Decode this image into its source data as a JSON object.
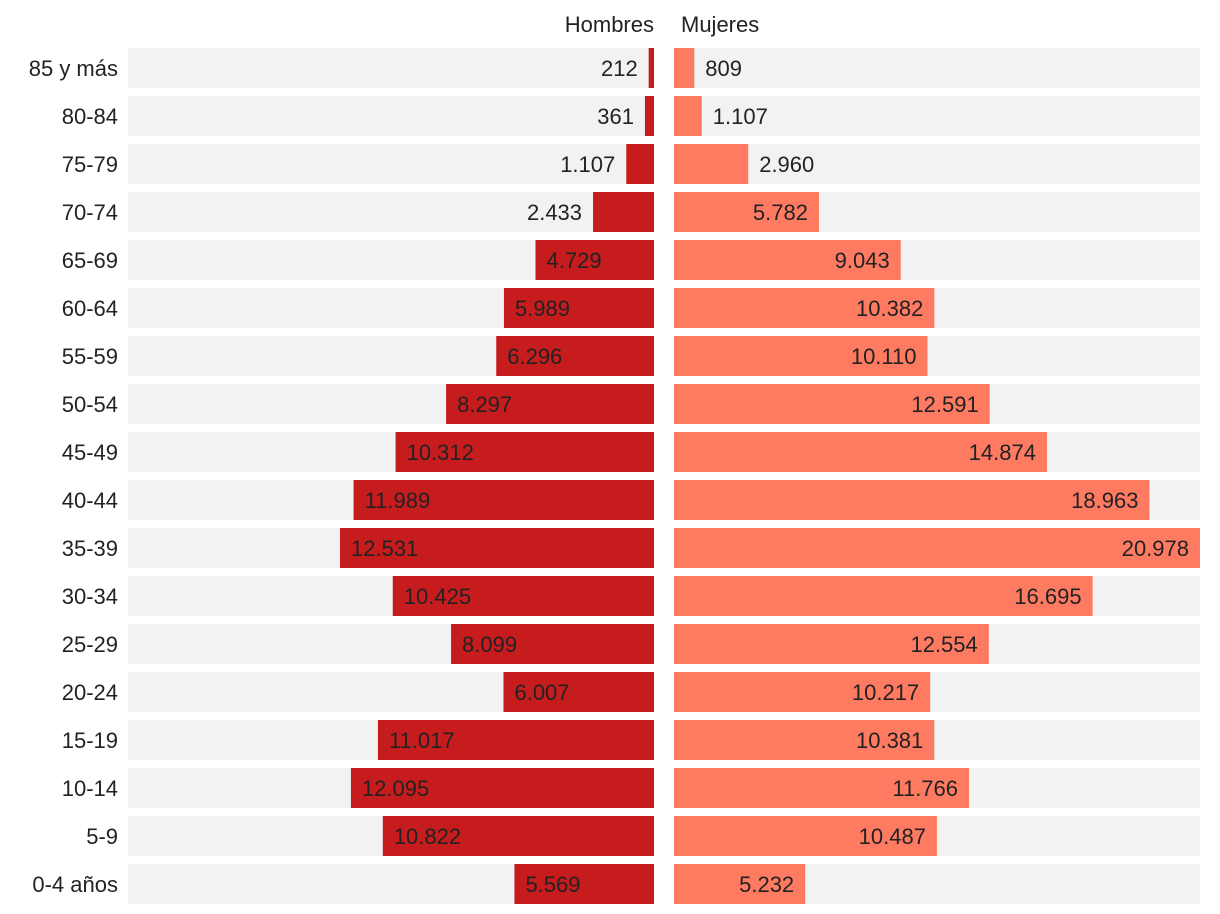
{
  "chart_data": {
    "type": "bar",
    "subtype": "population-pyramid",
    "categories": [
      "85 y más",
      "80-84",
      "75-79",
      "70-74",
      "65-69",
      "60-64",
      "55-59",
      "50-54",
      "45-49",
      "40-44",
      "35-39",
      "30-34",
      "25-29",
      "20-24",
      "15-19",
      "10-14",
      "5-9",
      "0-4 años"
    ],
    "series": [
      {
        "name": "Hombres",
        "color": "#c61c1e",
        "values": [
          212,
          361,
          1107,
          2433,
          4729,
          5989,
          6296,
          8297,
          10312,
          11989,
          12531,
          10425,
          8099,
          6007,
          11017,
          12095,
          10822,
          5569
        ],
        "labels": [
          "212",
          "361",
          "1.107",
          "2.433",
          "4.729",
          "5.989",
          "6.296",
          "8.297",
          "10.312",
          "11.989",
          "12.531",
          "10.425",
          "8.099",
          "6.007",
          "11.017",
          "12.095",
          "10.822",
          "5.569"
        ]
      },
      {
        "name": "Mujeres",
        "color": "#fe7b62",
        "values": [
          809,
          1107,
          2960,
          5782,
          9043,
          10382,
          10110,
          12591,
          14874,
          18963,
          20978,
          16695,
          12554,
          10217,
          10381,
          11766,
          10487,
          5232
        ],
        "labels": [
          "809",
          "1.107",
          "2.960",
          "5.782",
          "9.043",
          "10.382",
          "10.110",
          "12.591",
          "14.874",
          "18.963",
          "20.978",
          "16.695",
          "12.554",
          "10.217",
          "10.381",
          "11.766",
          "10.487",
          "5.232"
        ]
      }
    ],
    "background_bar_color": "#f2f2f2",
    "title": "",
    "xlabel": "",
    "ylabel": ""
  }
}
